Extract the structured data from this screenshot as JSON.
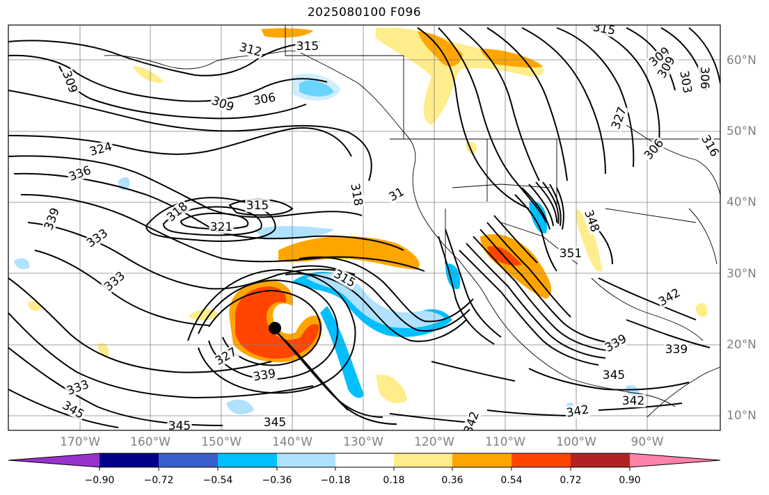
{
  "title": "2025080100 F096",
  "map": {
    "lon_labels": [
      "170°W",
      "160°W",
      "150°W",
      "140°W",
      "130°W",
      "120°W",
      "110°W",
      "100°W",
      "90°W"
    ],
    "lat_labels": [
      "60°N",
      "50°N",
      "40°N",
      "30°N",
      "20°N",
      "10°N"
    ],
    "contour_labels": [
      "312",
      "315",
      "315",
      "309",
      "306",
      "309",
      "306",
      "303",
      "309",
      "324",
      "336",
      "339",
      "318",
      "315",
      "321",
      "318",
      "31",
      "333",
      "333",
      "315",
      "327",
      "339",
      "333",
      "345",
      "345",
      "345",
      "327",
      "348",
      "351",
      "339",
      "342",
      "342",
      "339",
      "345",
      "342",
      "342",
      "309",
      "306",
      "316"
    ],
    "storm_marker": "center-dot"
  },
  "colorbar": {
    "tick_labels": [
      "−0.90",
      "−0.72",
      "−0.54",
      "−0.36",
      "−0.18",
      "0.18",
      "0.36",
      "0.54",
      "0.72",
      "0.90"
    ],
    "colors": [
      "#9932cc",
      "#00008b",
      "#3a5fcd",
      "#00bfff",
      "#b0e2ff",
      "#ffffff",
      "#ffec8b",
      "#ffa500",
      "#ff4500",
      "#b22222",
      "#ff82ab"
    ]
  }
}
